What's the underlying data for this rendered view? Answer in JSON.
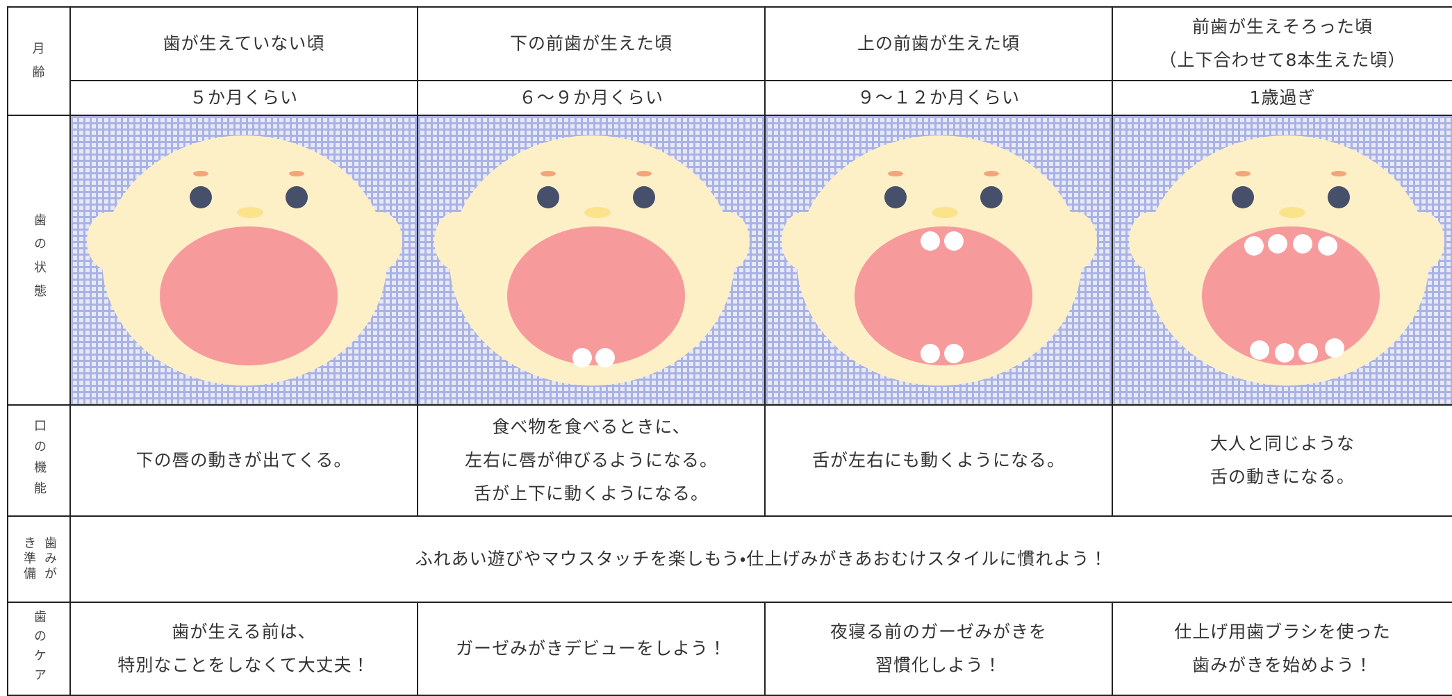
{
  "labels": {
    "age": "月齢",
    "teeth": "歯の状態",
    "function": "口の機能",
    "prep": "歯みがき準備",
    "care": "歯のケア"
  },
  "stages": [
    {
      "title": [
        "歯が生えていない頃"
      ],
      "age": "５か月くらい",
      "function": [
        "下の唇の動きが出てくる。"
      ],
      "care": [
        "歯が生える前は、",
        "特別なことをしなくて大丈夫！"
      ]
    },
    {
      "title": [
        "下の前歯が生えた頃"
      ],
      "age": "６～９か月くらい",
      "function": [
        "食べ物を食べるときに、",
        "左右に唇が伸びるようになる。",
        "舌が上下に動くようになる。"
      ],
      "care": [
        "ガーゼみがきデビューをしよう！"
      ]
    },
    {
      "title": [
        "上の前歯が生えた頃"
      ],
      "age": "９～１２か月くらい",
      "function": [
        "舌が左右にも動くようになる。"
      ],
      "care": [
        "夜寝る前のガーゼみがきを",
        "習慣化しよう！"
      ]
    },
    {
      "title": [
        "前歯が生えそろった頃",
        "（上下合わせて8本生えた頃）"
      ],
      "age": "1歳過ぎ",
      "function": [
        "大人と同じような",
        "舌の動きになる。"
      ],
      "care": [
        "仕上げ用歯ブラシを使った",
        "歯みがきを始めよう！"
      ]
    }
  ],
  "prep_text": "ふれあい遊びやマウスタッチを楽しもう・仕上げみがきあおむけスタイルに慣れよう！"
}
